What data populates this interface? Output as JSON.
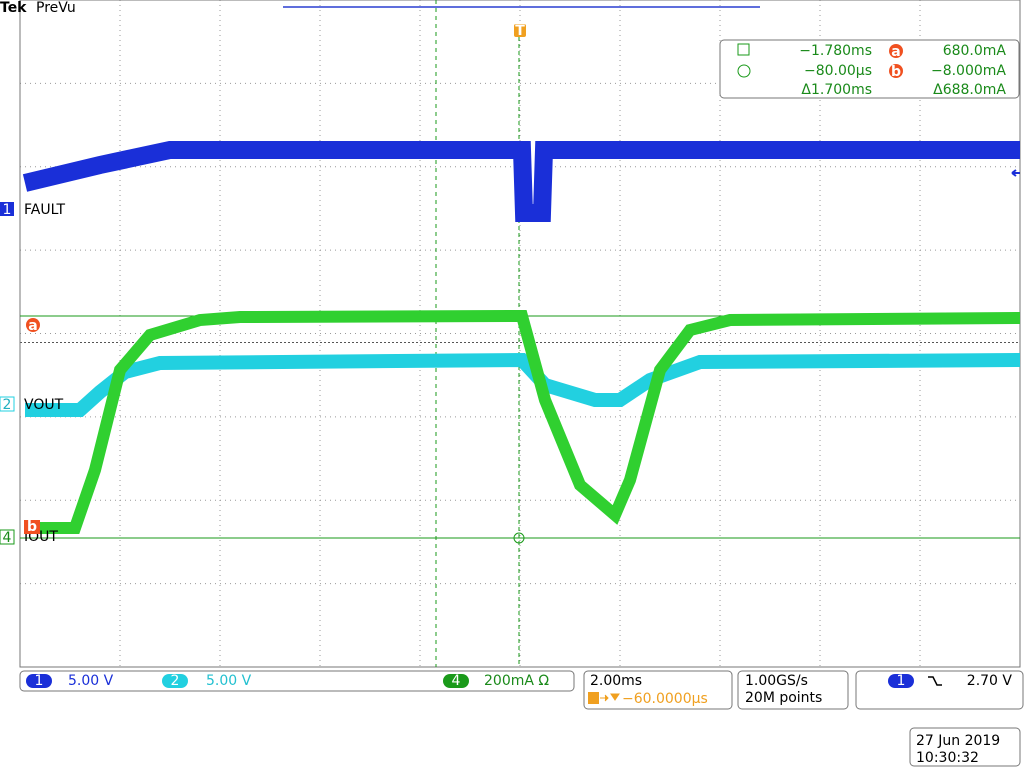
{
  "header": {
    "brand": "Tek",
    "mode": "PreVu"
  },
  "trigger_marker": "T",
  "cursor_readout": {
    "a_time": "−1.780ms",
    "a_marker": "a",
    "a_value": "680.0mA",
    "b_time": "−80.00µs",
    "b_marker": "b",
    "b_value": "−8.000mA",
    "delta_time": "Δ1.700ms",
    "delta_value": "Δ688.0mA"
  },
  "traces": [
    {
      "number": "1",
      "label": "FAULT"
    },
    {
      "number": "2",
      "label": "VOUT"
    },
    {
      "number": "4",
      "label": "IOUT"
    }
  ],
  "status_bar": {
    "channels": [
      {
        "number": "1",
        "scale": "5.00 V"
      },
      {
        "number": "2",
        "scale": "5.00 V"
      },
      {
        "number": "4",
        "scale": "200mA Ω"
      }
    ],
    "timebase": "2.00ms",
    "trigger_position": "−60.0000µs",
    "sample_rate": "1.00GS/s",
    "record_length": "20M points",
    "trigger_channel": "1",
    "trigger_level": "2.70 V"
  },
  "timestamp": {
    "date": "27 Jun 2019",
    "time": "10:30:32"
  }
}
